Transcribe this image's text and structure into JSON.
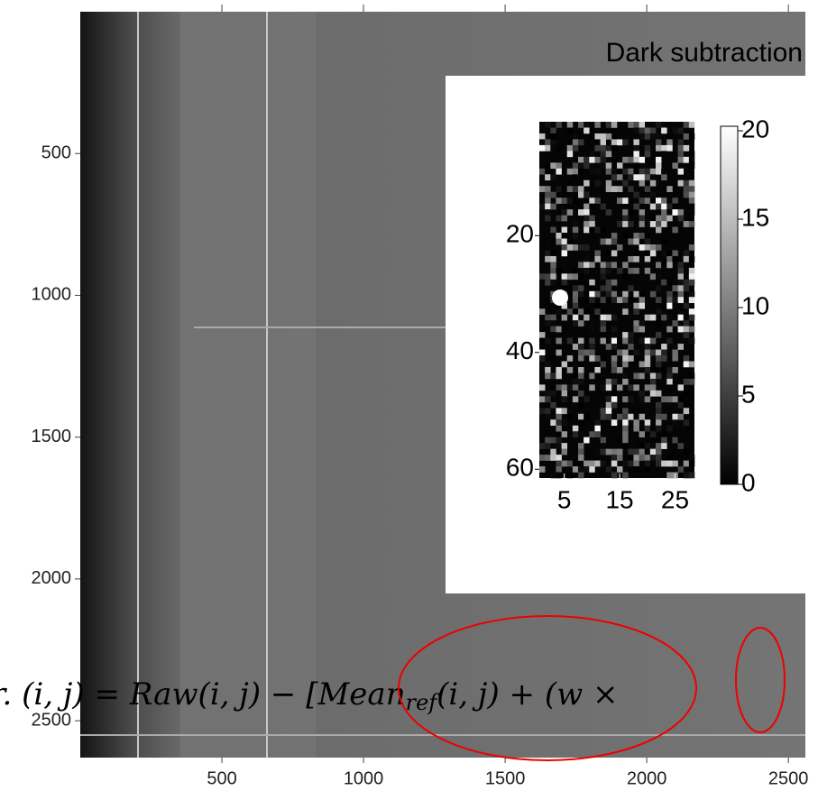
{
  "main_plot": {
    "xlim": [
      0,
      2560
    ],
    "ylim": [
      0,
      2630
    ],
    "xticks": [
      500,
      1000,
      1500,
      2000,
      2500
    ],
    "yticks": [
      500,
      1000,
      1500,
      2000,
      2500
    ]
  },
  "inset": {
    "title": "Dark subtraction",
    "xlim": [
      0.5,
      28.5
    ],
    "ylim": [
      0.5,
      61.5
    ],
    "xticks": [
      5,
      15,
      25
    ],
    "yticks": [
      20,
      40,
      60
    ],
    "colorbar_lim": [
      0,
      20
    ],
    "colorbar_ticks": [
      0,
      5,
      10,
      15,
      20
    ]
  },
  "equation": {
    "lhs": "r. (i, j) = Raw(i, j) − [",
    "mean": "Mean",
    "sub": "ref",
    "mid": "(i, j) + (",
    "w": "w",
    "times": "×"
  }
}
